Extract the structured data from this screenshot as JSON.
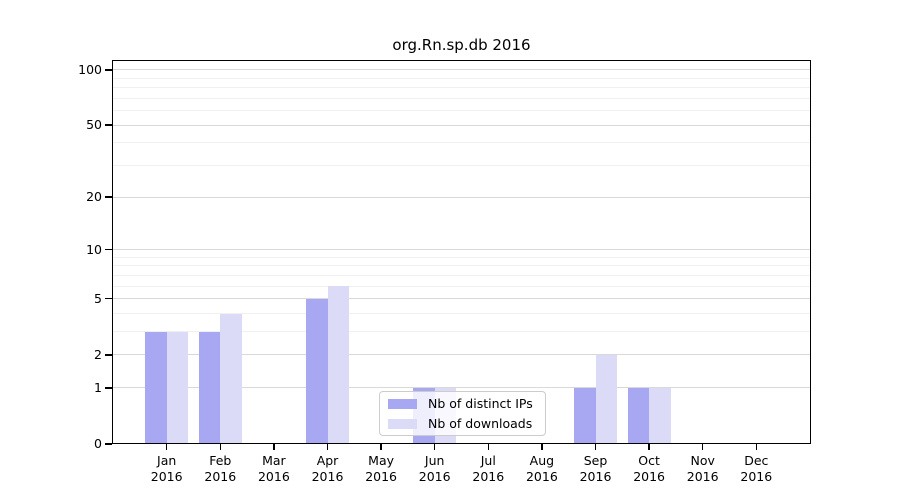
{
  "chart_data": {
    "type": "bar",
    "title": "org.Rn.sp.db 2016",
    "scale": "log10(1+x)",
    "categories": [
      {
        "month": "Jan",
        "year": "2016"
      },
      {
        "month": "Feb",
        "year": "2016"
      },
      {
        "month": "Mar",
        "year": "2016"
      },
      {
        "month": "Apr",
        "year": "2016"
      },
      {
        "month": "May",
        "year": "2016"
      },
      {
        "month": "Jun",
        "year": "2016"
      },
      {
        "month": "Jul",
        "year": "2016"
      },
      {
        "month": "Aug",
        "year": "2016"
      },
      {
        "month": "Sep",
        "year": "2016"
      },
      {
        "month": "Oct",
        "year": "2016"
      },
      {
        "month": "Nov",
        "year": "2016"
      },
      {
        "month": "Dec",
        "year": "2016"
      }
    ],
    "series": [
      {
        "name": "Nb of distinct IPs",
        "color": "#a8a8f2",
        "values": [
          3,
          3,
          0,
          5,
          0,
          1,
          0,
          0,
          1,
          1,
          0,
          0
        ]
      },
      {
        "name": "Nb of downloads",
        "color": "#dbdbf8",
        "values": [
          3,
          4,
          0,
          6,
          0,
          1,
          0,
          0,
          2,
          1,
          0,
          0
        ]
      }
    ],
    "y_ticks": [
      0,
      1,
      2,
      5,
      10,
      20,
      50,
      100
    ],
    "y_minor_ticks": [
      3,
      4,
      6,
      7,
      8,
      9,
      30,
      40,
      60,
      70,
      80,
      90
    ],
    "ylim": [
      0,
      113
    ],
    "grid": true,
    "legend_position": "lower center",
    "colors": {
      "grid_major": "#d9d9d9",
      "grid_minor": "#f0f0f0",
      "spine": "#000000",
      "background": "#ffffff"
    }
  }
}
